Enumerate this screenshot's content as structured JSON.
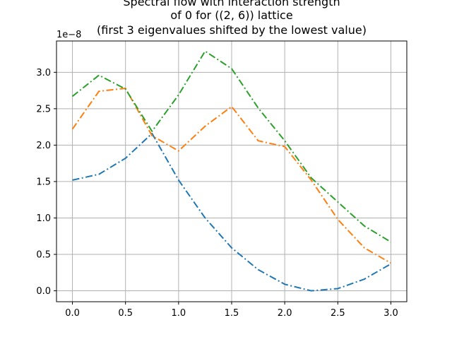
{
  "chart_data": {
    "type": "line",
    "title_lines": [
      "Spectral flow with interaction strength",
      "of 0 for ((2, 6)) lattice",
      "(first 3 eigenvalues shifted by the lowest value)"
    ],
    "xlabel": "",
    "ylabel": "",
    "y_offset_label": "1e−8",
    "xlim": [
      -0.15,
      3.15
    ],
    "ylim": [
      -0.15,
      3.43
    ],
    "x_ticks": [
      0.0,
      0.5,
      1.0,
      1.5,
      2.0,
      2.5,
      3.0
    ],
    "x_tick_labels": [
      "0.0",
      "0.5",
      "1.0",
      "1.5",
      "2.0",
      "2.5",
      "3.0"
    ],
    "y_ticks": [
      0.0,
      0.5,
      1.0,
      1.5,
      2.0,
      2.5,
      3.0
    ],
    "y_tick_labels": [
      "0.0",
      "0.5",
      "1.0",
      "1.5",
      "2.0",
      "2.5",
      "3.0"
    ],
    "grid": true,
    "line_style": "dash-dot",
    "x": [
      0.0,
      0.25,
      0.5,
      0.75,
      1.0,
      1.25,
      1.5,
      1.75,
      2.0,
      2.25,
      2.5,
      2.75,
      3.0
    ],
    "series": [
      {
        "color": "#1f77b4",
        "values": [
          1.52,
          1.6,
          1.82,
          2.16,
          1.52,
          1.0,
          0.59,
          0.29,
          0.09,
          0.0,
          0.03,
          0.16,
          0.37
        ]
      },
      {
        "color": "#ff7f0e",
        "values": [
          2.22,
          2.74,
          2.78,
          2.13,
          1.92,
          2.26,
          2.53,
          2.06,
          1.98,
          1.52,
          0.98,
          0.59,
          0.38
        ]
      },
      {
        "color": "#2ca02c",
        "values": [
          2.67,
          2.96,
          2.77,
          2.19,
          2.69,
          3.29,
          3.05,
          2.51,
          2.06,
          1.55,
          1.22,
          0.89,
          0.67
        ]
      }
    ]
  }
}
